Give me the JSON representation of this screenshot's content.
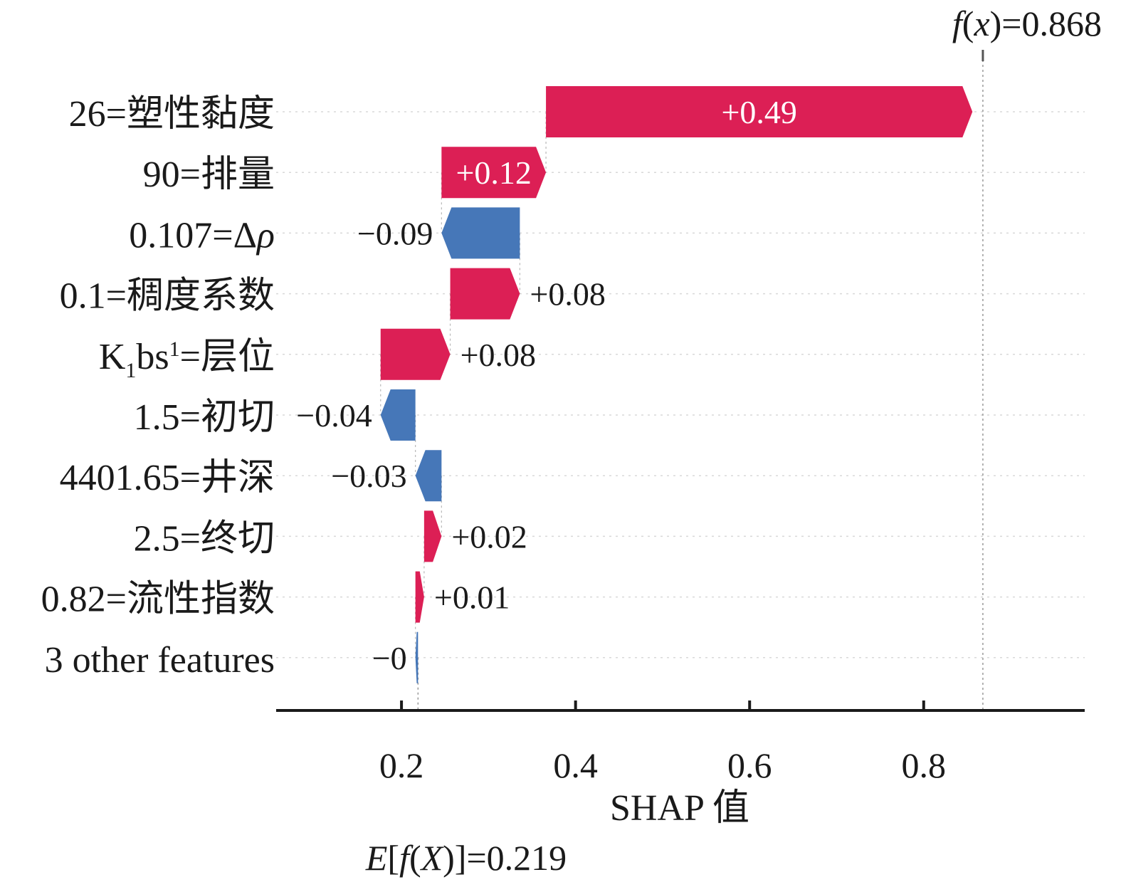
{
  "chart_data": {
    "type": "waterfall",
    "xlabel": "SHAP 值",
    "xticks": [
      0.2,
      0.4,
      0.6,
      0.8
    ],
    "xtick_labels": [
      "0.2",
      "0.4",
      "0.6",
      "0.8"
    ],
    "xlim": [
      0.056,
      0.985
    ],
    "base_value": 0.219,
    "base_label": "E[f(X)]=0.219",
    "output_value": 0.868,
    "output_label": "f(x)=0.868",
    "grid": false,
    "features": [
      {
        "name": "26=塑性黏度",
        "value": 0.49,
        "label": "+0.49"
      },
      {
        "name": "90=排量",
        "value": 0.12,
        "label": "+0.12"
      },
      {
        "name": "0.107=Δρ",
        "value": -0.09,
        "label": "−0.09"
      },
      {
        "name": "0.1=稠度系数",
        "value": 0.08,
        "label": "+0.08"
      },
      {
        "name": "K1bs1=层位",
        "value": 0.08,
        "label": "+0.08"
      },
      {
        "name": "1.5=初切",
        "value": -0.04,
        "label": "−0.04"
      },
      {
        "name": "4401.65=井深",
        "value": -0.03,
        "label": "−0.03"
      },
      {
        "name": "2.5=终切",
        "value": 0.02,
        "label": "+0.02"
      },
      {
        "name": "0.82=流性指数",
        "value": 0.01,
        "label": "+0.01"
      },
      {
        "name": "3 other features",
        "value": -0.003,
        "label": "−0"
      }
    ],
    "colors": {
      "positive": "#dc1f55",
      "negative": "#4677b8"
    }
  }
}
